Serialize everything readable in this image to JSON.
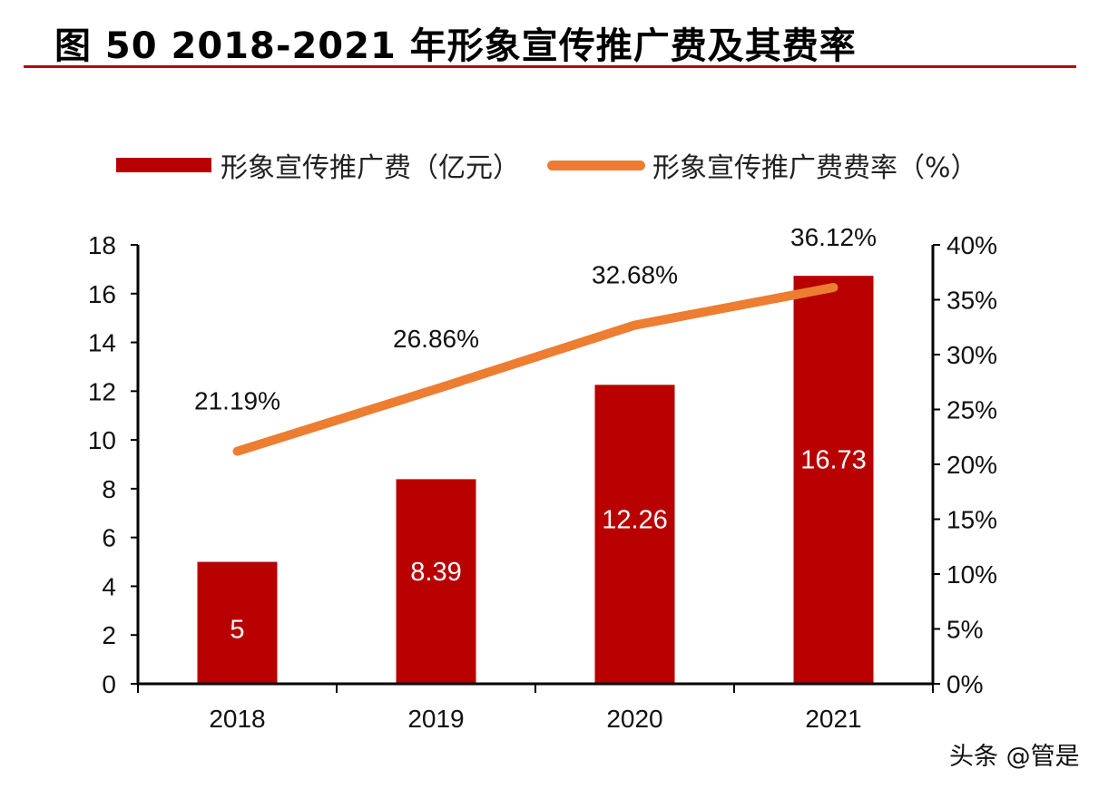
{
  "title": "图 50 2018-2021 年形象宣传推广费及其费率",
  "watermark": "头条 @管是",
  "colors": {
    "bar": "#b80000",
    "line": "#ed7d31",
    "title_rule": "#c00000"
  },
  "chart_data": {
    "type": "bar+line",
    "title": "图 50 2018-2021 年形象宣传推广费及其费率",
    "categories": [
      "2018",
      "2019",
      "2020",
      "2021"
    ],
    "series": [
      {
        "name": "形象宣传推广费（亿元）",
        "type": "bar",
        "axis": "left",
        "values": [
          5,
          8.39,
          12.26,
          16.73
        ],
        "labels": [
          "5",
          "8.39",
          "12.26",
          "16.73"
        ]
      },
      {
        "name": "形象宣传推广费费率（%）",
        "type": "line",
        "axis": "right",
        "values": [
          21.19,
          26.86,
          32.68,
          36.12
        ],
        "labels": [
          "21.19%",
          "26.86%",
          "32.68%",
          "36.12%"
        ]
      }
    ],
    "y_left": {
      "lim": [
        0,
        18
      ],
      "ticks": [
        "0",
        "2",
        "4",
        "6",
        "8",
        "10",
        "12",
        "14",
        "16",
        "18"
      ]
    },
    "y_right": {
      "lim": [
        0,
        40
      ],
      "ticks": [
        "0%",
        "5%",
        "10%",
        "15%",
        "20%",
        "25%",
        "30%",
        "35%",
        "40%"
      ]
    },
    "grid": false,
    "legend": "top"
  }
}
